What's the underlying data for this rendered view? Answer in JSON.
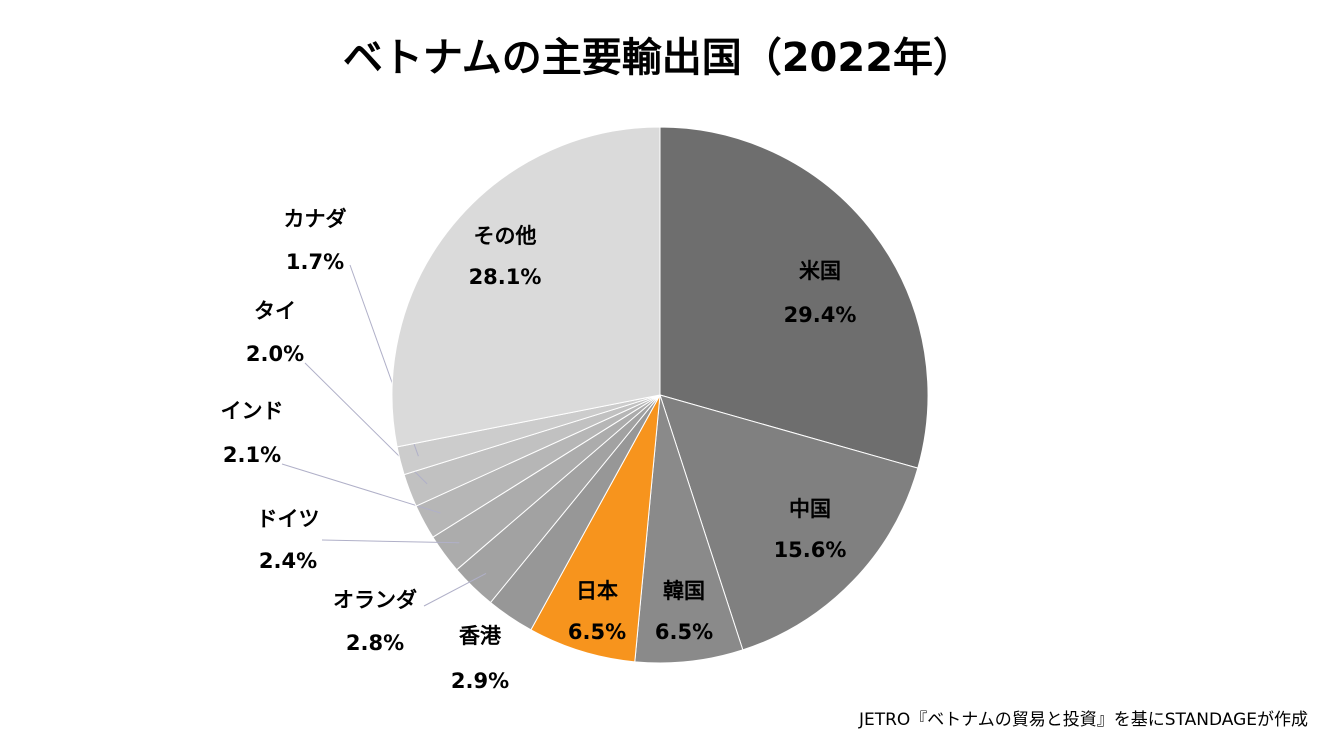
{
  "chart_data": {
    "type": "pie",
    "title": "ベトナムの主要輸出国（2022年）",
    "categories": [
      "米国",
      "中国",
      "韓国",
      "日本",
      "香港",
      "オランダ",
      "ドイツ",
      "インド",
      "タイ",
      "カナダ",
      "その他"
    ],
    "values": [
      29.4,
      15.6,
      6.5,
      6.5,
      2.9,
      2.8,
      2.4,
      2.1,
      2.0,
      1.7,
      28.1
    ],
    "value_labels": [
      "29.4%",
      "15.6%",
      "6.5%",
      "6.5%",
      "2.9%",
      "2.8%",
      "2.4%",
      "2.1%",
      "2.0%",
      "1.7%",
      "28.1%"
    ],
    "colors": [
      "#6e6e6e",
      "#808080",
      "#8a8a8a",
      "#f7941d",
      "#979797",
      "#a2a2a2",
      "#acacac",
      "#b6b6b6",
      "#c1c1c1",
      "#cccccc",
      "#dadada"
    ],
    "source": "JETRO『ベトナムの貿易と投資』を基にSTANDAGEが作成"
  }
}
